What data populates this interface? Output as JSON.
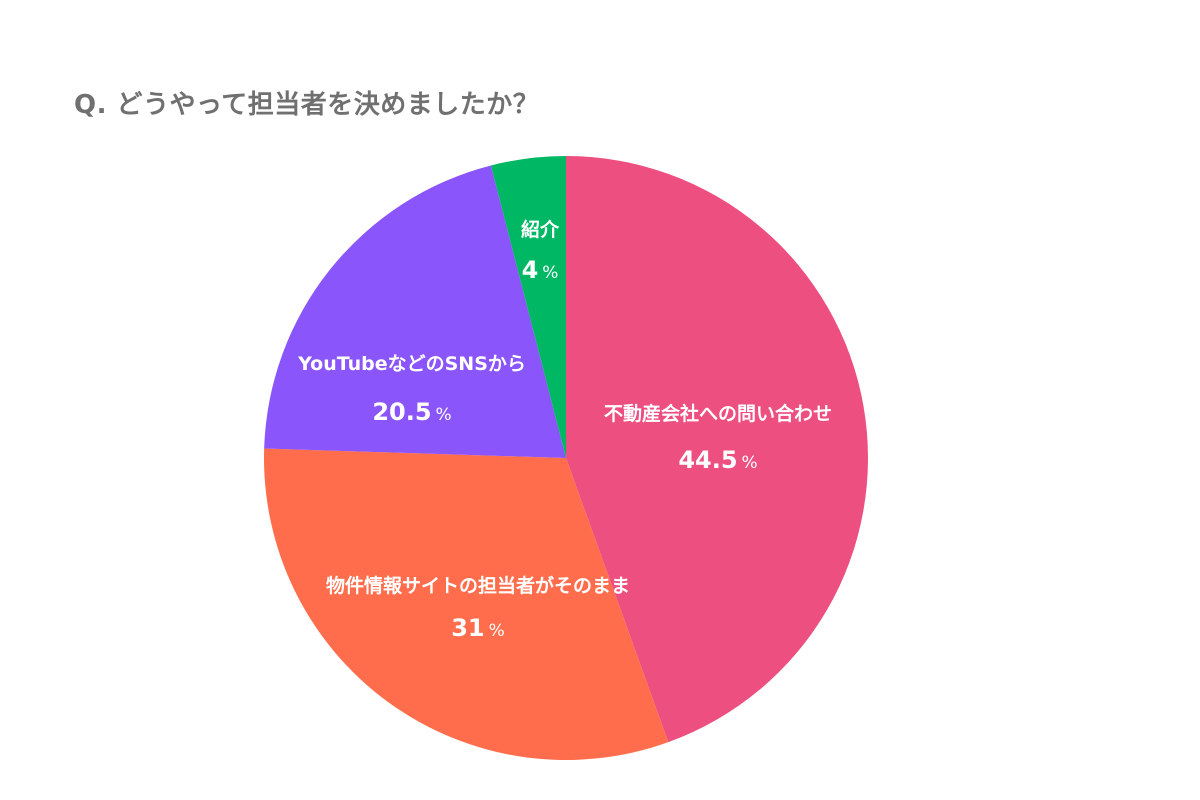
{
  "title": "Q. どうやって担当者を決めましたか？",
  "chart_data": {
    "type": "pie",
    "start_angle_deg": 0,
    "direction": "clockwise",
    "unit": "%",
    "slices": [
      {
        "label": "不動産会社への問い合わせ",
        "value": 44.5,
        "value_text": "44.5",
        "color": "#EC4F80"
      },
      {
        "label": "物件情報サイトの担当者がそのまま",
        "value": 31,
        "value_text": "31",
        "color": "#FF6D4D"
      },
      {
        "label": "YouTubeなどのSNSから",
        "value": 20.5,
        "value_text": "20.5",
        "color": "#8A55FB"
      },
      {
        "label": "紹介",
        "value": 4,
        "value_text": "4",
        "color": "#00B863"
      }
    ]
  }
}
